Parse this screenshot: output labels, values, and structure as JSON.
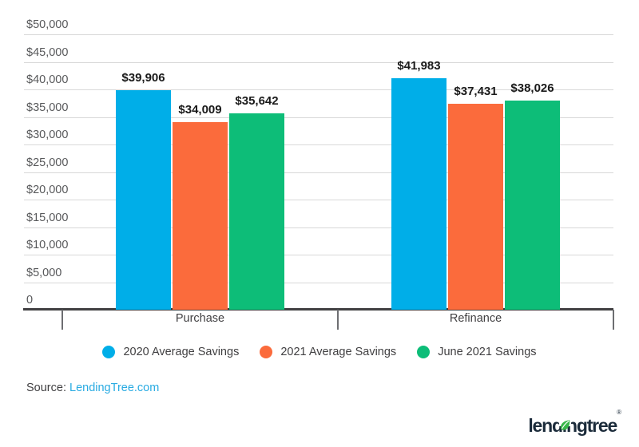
{
  "chart_data": {
    "type": "bar",
    "categories": [
      "Purchase",
      "Refinance"
    ],
    "series": [
      {
        "name": "2020 Average Savings",
        "color": "#00aee8",
        "values": [
          39906,
          41983
        ],
        "labels": [
          "$39,906",
          "$41,983"
        ]
      },
      {
        "name": "2021 Average Savings",
        "color": "#fb6b3c",
        "values": [
          34009,
          37431
        ],
        "labels": [
          "$34,009",
          "$37,431"
        ]
      },
      {
        "name": "June 2021 Savings",
        "color": "#0dbd78",
        "values": [
          35642,
          38026
        ],
        "labels": [
          "$35,642",
          "$38,026"
        ]
      }
    ],
    "title": "",
    "xlabel": "",
    "ylabel": "",
    "ylim": [
      0,
      50000
    ],
    "y_tick_step": 5000,
    "y_ticks": [
      {
        "value": 50000,
        "label": "$50,000"
      },
      {
        "value": 45000,
        "label": "$45,000"
      },
      {
        "value": 40000,
        "label": "$40,000"
      },
      {
        "value": 35000,
        "label": "$35,000"
      },
      {
        "value": 30000,
        "label": "$30,000"
      },
      {
        "value": 25000,
        "label": "$25,000"
      },
      {
        "value": 20000,
        "label": "$20,000"
      },
      {
        "value": 15000,
        "label": "$15,000"
      },
      {
        "value": 10000,
        "label": "$10,000"
      },
      {
        "value": 5000,
        "label": "$5,000"
      },
      {
        "value": 0,
        "label": "0"
      }
    ],
    "grid": true,
    "legend_position": "bottom"
  },
  "footer": {
    "source_label": "Source:",
    "source_link": "LendingTree.com"
  },
  "logo": {
    "wordmark": "lendingtree",
    "registered": "®",
    "leaf_color": "#37b648",
    "text_color": "#1b2b3a"
  }
}
